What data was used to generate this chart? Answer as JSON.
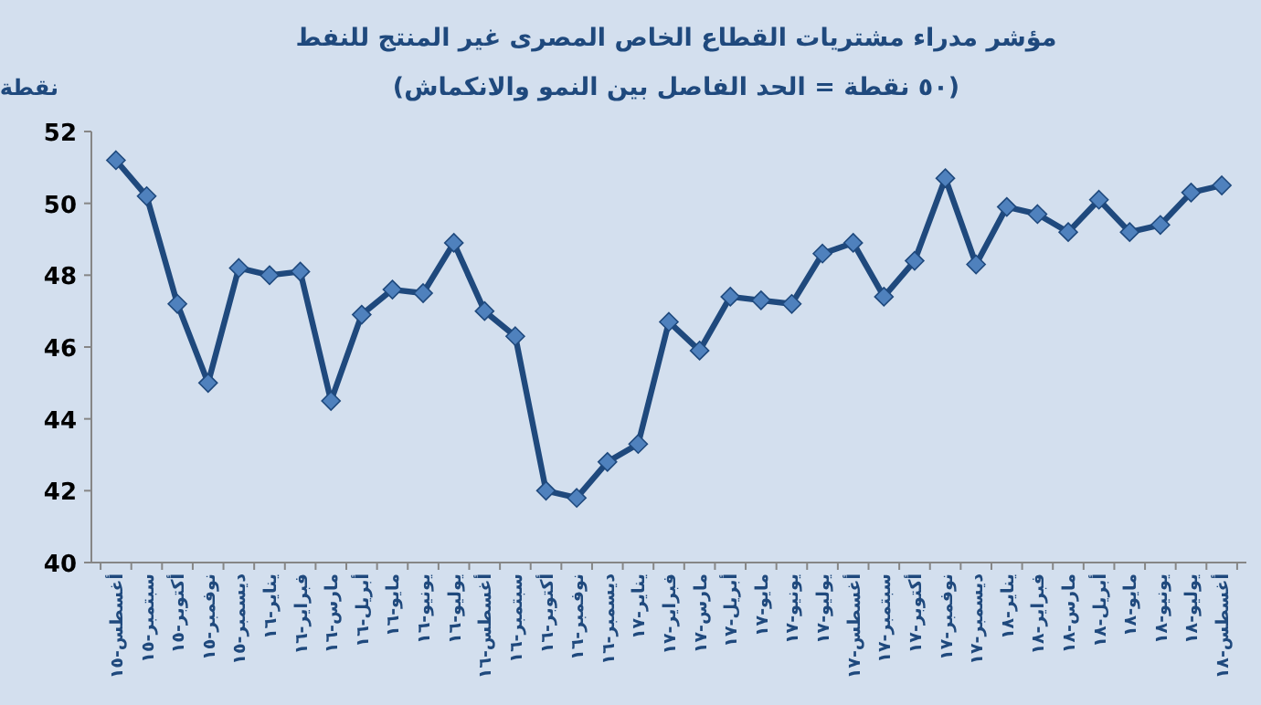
{
  "chart_data": {
    "type": "line",
    "title": "مؤشر مدراء مشتريات القطاع الخاص المصرى غير المنتج للنفط",
    "subtitle": "(٥٠ نقطة = الحد الفاصل بين النمو والانكماش)",
    "ylabel": "نقطة",
    "categories": [
      "أغسطس-١٥",
      "سبتمبر-١٥",
      "أكتوبر-١٥",
      "نوفمبر-١٥",
      "ديسمبر-١٥",
      "يناير-١٦",
      "فبراير-١٦",
      "مارس-١٦",
      "أبريل-١٦",
      "مايو-١٦",
      "يونيو-١٦",
      "يوليو-١٦",
      "أغسطس-١٦",
      "سبتمبر-١٦",
      "أكتوبر-١٦",
      "نوفمبر-١٦",
      "ديسمبر-١٦",
      "يناير-١٧",
      "فبراير-١٧",
      "مارس-١٧",
      "أبريل-١٧",
      "مايو-١٧",
      "يونيو-١٧",
      "يوليو-١٧",
      "أغسطس-١٧",
      "سبتمبر-١٧",
      "أكتوبر-١٧",
      "نوفمبر-١٧",
      "ديسمبر-١٧",
      "يناير-١٨",
      "فبراير-١٨",
      "مارس-١٨",
      "أبريل-١٨",
      "مايو-١٨",
      "يونيو-١٨",
      "يوليو-١٨",
      "أغسطس-١٨"
    ],
    "series": [
      {
        "color": "#1f497d",
        "values": [
          51.2,
          50.2,
          47.2,
          45.0,
          48.2,
          48.0,
          48.1,
          44.5,
          46.9,
          47.6,
          47.5,
          48.9,
          47.0,
          46.3,
          42.0,
          41.8,
          42.8,
          43.3,
          46.7,
          45.9,
          47.4,
          47.3,
          47.2,
          48.6,
          48.9,
          47.4,
          48.4,
          50.7,
          48.3,
          49.9,
          49.7,
          49.2,
          50.1,
          49.2,
          49.4,
          50.3,
          50.5
        ]
      }
    ],
    "ylim": [
      40,
      52
    ],
    "yticks": [
      40,
      42,
      44,
      46,
      48,
      50,
      52
    ],
    "marker": "diamond",
    "grid": false
  }
}
